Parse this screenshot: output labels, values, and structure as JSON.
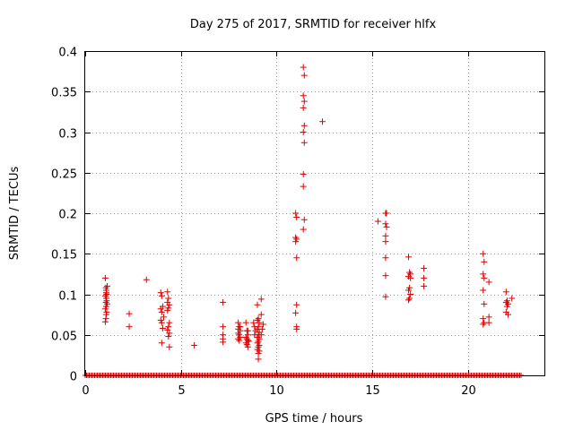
{
  "chart_data": {
    "type": "scatter",
    "title": "Day 275 of 2017, SRMTID for receiver hlfx",
    "xlabel": "GPS time / hours",
    "ylabel": "SRMTID / TECUs",
    "xlim": [
      0,
      24
    ],
    "ylim": [
      0,
      0.4
    ],
    "x_ticks": [
      0,
      5,
      10,
      15,
      20
    ],
    "x_tick_labels": [
      "0",
      "5",
      "10",
      "15",
      "20"
    ],
    "y_ticks": [
      0,
      0.05,
      0.1,
      0.15,
      0.2,
      0.25,
      0.3,
      0.35,
      0.4
    ],
    "y_tick_labels": [
      "0",
      "0.05",
      "0.1",
      "0.15",
      "0.2",
      "0.25",
      "0.3",
      "0.35",
      "0.4"
    ],
    "grid": true,
    "marker": "+",
    "color": "#dd0000",
    "baseline_zero_range": [
      0,
      22.8
    ],
    "points": [
      [
        1.05,
        0.12
      ],
      [
        1.08,
        0.108
      ],
      [
        1.1,
        0.105
      ],
      [
        1.12,
        0.1
      ],
      [
        1.05,
        0.098
      ],
      [
        1.1,
        0.095
      ],
      [
        1.12,
        0.092
      ],
      [
        1.08,
        0.09
      ],
      [
        1.15,
        0.088
      ],
      [
        1.1,
        0.085
      ],
      [
        1.05,
        0.082
      ],
      [
        1.12,
        0.078
      ],
      [
        1.1,
        0.075
      ],
      [
        1.08,
        0.07
      ],
      [
        1.05,
        0.066
      ],
      [
        1.15,
        0.11
      ],
      [
        1.1,
        0.102
      ],
      [
        2.3,
        0.076
      ],
      [
        2.3,
        0.06
      ],
      [
        3.2,
        0.118
      ],
      [
        3.95,
        0.102
      ],
      [
        4.0,
        0.098
      ],
      [
        4.05,
        0.085
      ],
      [
        3.95,
        0.082
      ],
      [
        4.0,
        0.078
      ],
      [
        4.1,
        0.072
      ],
      [
        3.95,
        0.068
      ],
      [
        4.0,
        0.065
      ],
      [
        4.05,
        0.058
      ],
      [
        4.0,
        0.04
      ],
      [
        4.3,
        0.103
      ],
      [
        4.35,
        0.095
      ],
      [
        4.3,
        0.09
      ],
      [
        4.4,
        0.087
      ],
      [
        4.35,
        0.083
      ],
      [
        4.3,
        0.08
      ],
      [
        4.4,
        0.065
      ],
      [
        4.35,
        0.06
      ],
      [
        4.3,
        0.056
      ],
      [
        4.4,
        0.052
      ],
      [
        4.35,
        0.048
      ],
      [
        4.4,
        0.035
      ],
      [
        5.7,
        0.037
      ],
      [
        7.2,
        0.09
      ],
      [
        7.2,
        0.06
      ],
      [
        7.2,
        0.05
      ],
      [
        7.2,
        0.045
      ],
      [
        7.2,
        0.041
      ],
      [
        8.0,
        0.065
      ],
      [
        8.05,
        0.06
      ],
      [
        8.0,
        0.057
      ],
      [
        8.1,
        0.055
      ],
      [
        8.0,
        0.052
      ],
      [
        8.05,
        0.05
      ],
      [
        8.1,
        0.047
      ],
      [
        8.0,
        0.045
      ],
      [
        8.05,
        0.043
      ],
      [
        8.1,
        0.06
      ],
      [
        8.4,
        0.065
      ],
      [
        8.45,
        0.055
      ],
      [
        8.5,
        0.05
      ],
      [
        8.4,
        0.047
      ],
      [
        8.45,
        0.045
      ],
      [
        8.5,
        0.043
      ],
      [
        8.4,
        0.04
      ],
      [
        8.45,
        0.038
      ],
      [
        8.5,
        0.035
      ],
      [
        8.55,
        0.042
      ],
      [
        8.5,
        0.055
      ],
      [
        8.8,
        0.065
      ],
      [
        8.85,
        0.06
      ],
      [
        8.9,
        0.055
      ],
      [
        8.85,
        0.05
      ],
      [
        9.0,
        0.087
      ],
      [
        9.05,
        0.07
      ],
      [
        9.0,
        0.068
      ],
      [
        9.1,
        0.065
      ],
      [
        9.05,
        0.06
      ],
      [
        9.0,
        0.057
      ],
      [
        9.1,
        0.053
      ],
      [
        9.05,
        0.05
      ],
      [
        9.0,
        0.047
      ],
      [
        9.1,
        0.045
      ],
      [
        9.05,
        0.042
      ],
      [
        9.0,
        0.04
      ],
      [
        9.1,
        0.037
      ],
      [
        9.05,
        0.035
      ],
      [
        9.0,
        0.032
      ],
      [
        9.1,
        0.03
      ],
      [
        9.05,
        0.027
      ],
      [
        9.05,
        0.02
      ],
      [
        9.2,
        0.094
      ],
      [
        9.2,
        0.075
      ],
      [
        9.3,
        0.063
      ],
      [
        9.25,
        0.057
      ],
      [
        9.2,
        0.05
      ],
      [
        11.0,
        0.2
      ],
      [
        11.05,
        0.195
      ],
      [
        11.0,
        0.17
      ],
      [
        11.05,
        0.168
      ],
      [
        11.0,
        0.165
      ],
      [
        11.05,
        0.145
      ],
      [
        11.05,
        0.087
      ],
      [
        11.0,
        0.077
      ],
      [
        11.05,
        0.06
      ],
      [
        11.05,
        0.057
      ],
      [
        11.4,
        0.38
      ],
      [
        11.45,
        0.37
      ],
      [
        11.4,
        0.345
      ],
      [
        11.45,
        0.338
      ],
      [
        11.4,
        0.33
      ],
      [
        11.45,
        0.308
      ],
      [
        11.4,
        0.3
      ],
      [
        11.45,
        0.287
      ],
      [
        11.4,
        0.248
      ],
      [
        11.4,
        0.233
      ],
      [
        11.45,
        0.192
      ],
      [
        11.4,
        0.18
      ],
      [
        12.4,
        0.313
      ],
      [
        15.3,
        0.19
      ],
      [
        15.7,
        0.2
      ],
      [
        15.75,
        0.2
      ],
      [
        15.7,
        0.187
      ],
      [
        15.75,
        0.183
      ],
      [
        15.7,
        0.172
      ],
      [
        15.7,
        0.165
      ],
      [
        15.7,
        0.145
      ],
      [
        15.7,
        0.123
      ],
      [
        15.7,
        0.097
      ],
      [
        16.9,
        0.146
      ],
      [
        16.95,
        0.127
      ],
      [
        17.0,
        0.125
      ],
      [
        16.9,
        0.122
      ],
      [
        17.0,
        0.12
      ],
      [
        16.95,
        0.108
      ],
      [
        16.9,
        0.105
      ],
      [
        17.0,
        0.1
      ],
      [
        16.95,
        0.095
      ],
      [
        16.9,
        0.093
      ],
      [
        17.7,
        0.132
      ],
      [
        17.7,
        0.12
      ],
      [
        17.7,
        0.11
      ],
      [
        20.8,
        0.15
      ],
      [
        20.85,
        0.14
      ],
      [
        20.8,
        0.125
      ],
      [
        20.85,
        0.12
      ],
      [
        20.8,
        0.105
      ],
      [
        20.85,
        0.088
      ],
      [
        20.8,
        0.07
      ],
      [
        20.85,
        0.065
      ],
      [
        20.8,
        0.063
      ],
      [
        21.1,
        0.115
      ],
      [
        21.1,
        0.072
      ],
      [
        21.1,
        0.065
      ],
      [
        22.0,
        0.103
      ],
      [
        22.05,
        0.092
      ],
      [
        22.0,
        0.09
      ],
      [
        22.1,
        0.088
      ],
      [
        22.05,
        0.085
      ],
      [
        22.0,
        0.078
      ],
      [
        22.1,
        0.075
      ],
      [
        22.3,
        0.095
      ]
    ]
  }
}
